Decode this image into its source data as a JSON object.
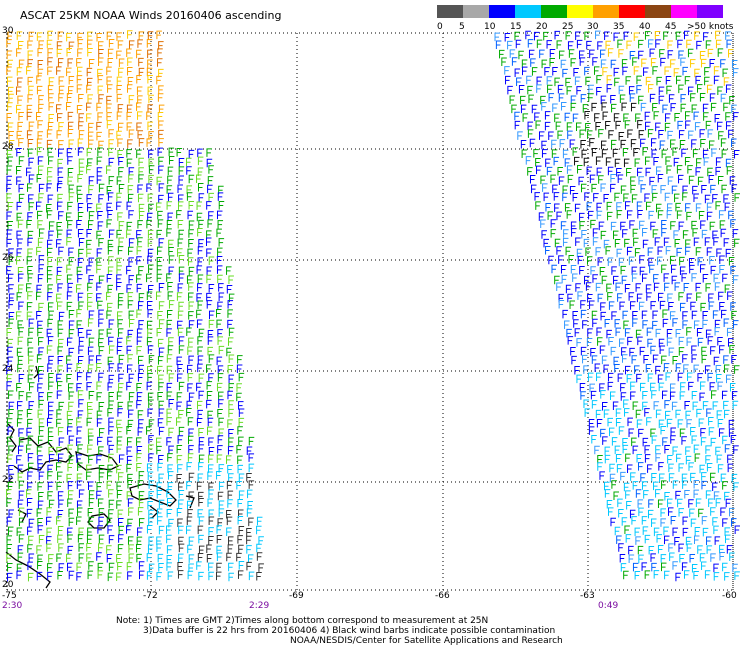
{
  "title": "ASCAT 25KM NOAA Winds 20160406 ascending",
  "legend": {
    "colors": [
      "#555555",
      "#a8a8a8",
      "#0000ff",
      "#00c8ff",
      "#00aa00",
      "#ffff00",
      "#ffa000",
      "#ff0000",
      "#8b4513",
      "#ff00ff",
      "#7f00ff"
    ],
    "labels": [
      "0",
      "5",
      "10",
      "15",
      "20",
      "25",
      "30",
      "35",
      "40",
      "45",
      ">50 knots"
    ]
  },
  "axes": {
    "lat_labels": [
      "30",
      "28",
      "26",
      "24",
      "22",
      "20"
    ],
    "lon_labels": [
      "-75",
      "-72",
      "-69",
      "-66",
      "-63",
      "-60"
    ]
  },
  "pass_times": [
    "2:30",
    "2:29",
    "0:49"
  ],
  "notes": [
    "Note: 1) Times are GMT 2)Times along bottom correspond to measurement at 25N",
    "3)Data buffer is 22 hrs from 20160406 4) Black wind barbs indicate possible contamination",
    "NOAA/NESDIS/Center for Satellite Applications and Research"
  ]
}
